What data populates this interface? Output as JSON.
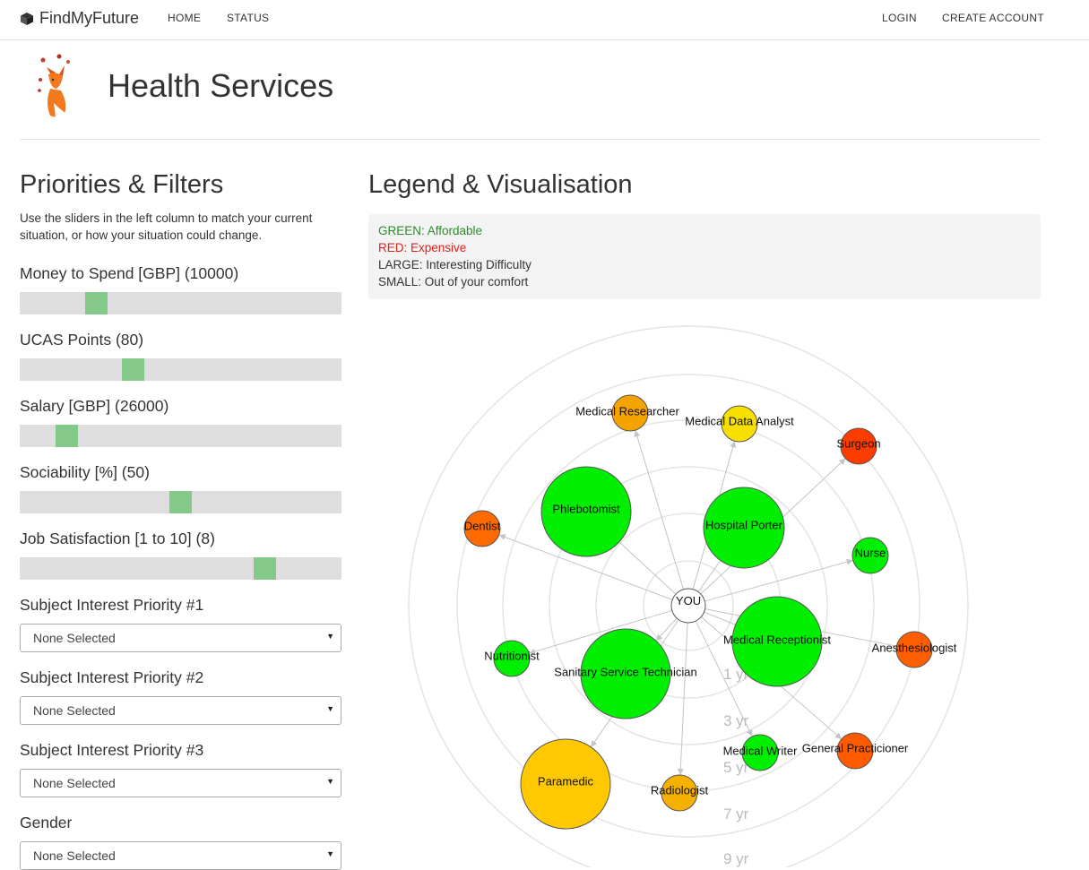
{
  "nav": {
    "brand": "FindMyFuture",
    "links_left": [
      "HOME",
      "STATUS"
    ],
    "links_right": [
      "LOGIN",
      "CREATE ACCOUNT"
    ]
  },
  "header": {
    "title": "Health Services"
  },
  "filters": {
    "title": "Priorities & Filters",
    "help": "Use the sliders in the left column to match your current situation, or how your situation could change.",
    "sliders": [
      {
        "label": "Money to Spend [GBP] (10000)",
        "value_fraction": 0.22
      },
      {
        "label": "UCAS Points (80)",
        "value_fraction": 0.34
      },
      {
        "label": "Salary [GBP] (26000)",
        "value_fraction": 0.12
      },
      {
        "label": "Sociability [%] (50)",
        "value_fraction": 0.5
      },
      {
        "label": "Job Satisfaction [1 to 10] (8)",
        "value_fraction": 0.78
      }
    ],
    "selects": [
      {
        "label": "Subject Interest Priority #1",
        "value": "None Selected"
      },
      {
        "label": "Subject Interest Priority #2",
        "value": "None Selected"
      },
      {
        "label": "Subject Interest Priority #3",
        "value": "None Selected"
      },
      {
        "label": "Gender",
        "value": "None Selected"
      }
    ]
  },
  "legend": {
    "title": "Legend & Visualisation",
    "lines": [
      {
        "text": "GREEN: Affordable",
        "color": "#2e8b2e"
      },
      {
        "text": "RED: Expensive",
        "color": "#e0201c"
      },
      {
        "text": "LARGE: Interesting Difficulty",
        "color": "#333333"
      },
      {
        "text": "SMALL: Out of your comfort",
        "color": "#333333"
      }
    ]
  },
  "visualisation": {
    "center_label": "YOU",
    "ring_labels": [
      "1 yr",
      "3 yr",
      "5 yr",
      "7 yr",
      "9 yr"
    ],
    "nodes": [
      {
        "label": "Medical Researcher",
        "color": "#f5a300"
      },
      {
        "label": "Medical Data Analyst",
        "color": "#f7e000"
      },
      {
        "label": "Surgeon",
        "color": "#ff3c00"
      },
      {
        "label": "Dentist",
        "color": "#ff6a00"
      },
      {
        "label": "Phlebotomist",
        "color": "#00ee00"
      },
      {
        "label": "Hospital Porter",
        "color": "#00ee00"
      },
      {
        "label": "Nurse",
        "color": "#00ee00"
      },
      {
        "label": "Medical Receptionist",
        "color": "#00ee00"
      },
      {
        "label": "Anesthesiologist",
        "color": "#ff5e00"
      },
      {
        "label": "Nutritionist",
        "color": "#00ee00"
      },
      {
        "label": "Sanitary Service Technician",
        "color": "#00ee00"
      },
      {
        "label": "Medical Writer",
        "color": "#00ee00"
      },
      {
        "label": "General Practicioner",
        "color": "#ff5a00"
      },
      {
        "label": "Paramedic",
        "color": "#ffc800"
      },
      {
        "label": "Radiologist",
        "color": "#f5b000"
      }
    ]
  }
}
